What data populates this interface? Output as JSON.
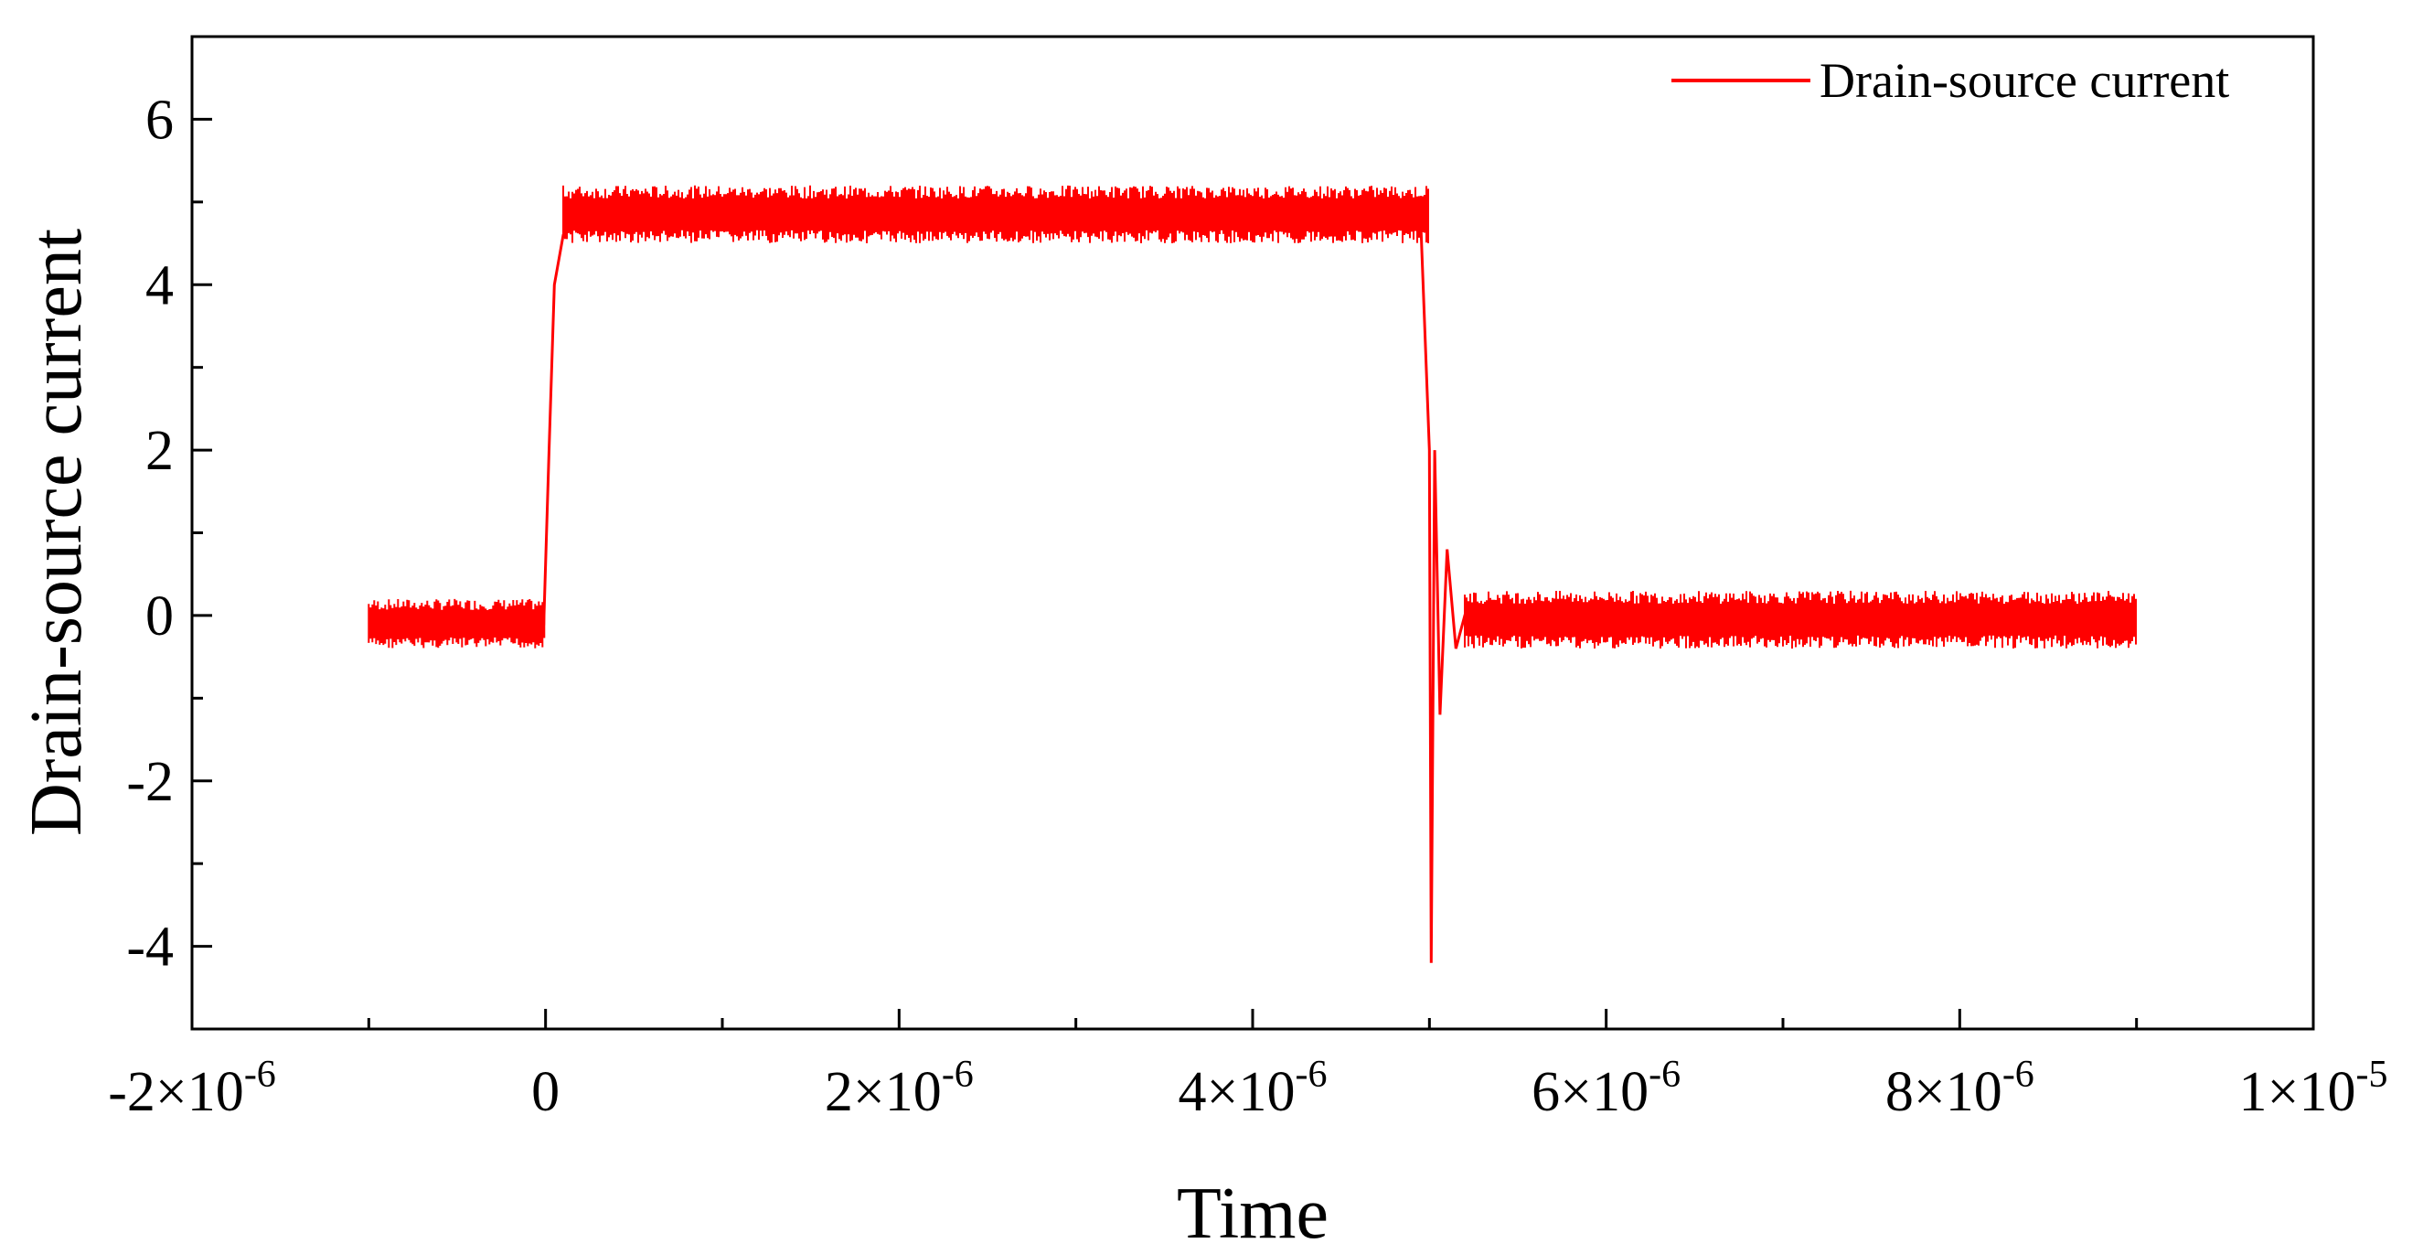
{
  "chart_data": {
    "type": "line",
    "title": "",
    "xlabel": "Time",
    "ylabel": "Drain-source current",
    "xlim": [
      -2e-06,
      1e-05
    ],
    "ylim": [
      -5,
      7
    ],
    "x_ticks": [
      {
        "value": -2e-06,
        "mant": "-2",
        "exp": "-6"
      },
      {
        "value": 0,
        "mant": "0",
        "exp": ""
      },
      {
        "value": 2e-06,
        "mant": "2",
        "exp": "-6"
      },
      {
        "value": 4e-06,
        "mant": "4",
        "exp": "-6"
      },
      {
        "value": 6e-06,
        "mant": "6",
        "exp": "-6"
      },
      {
        "value": 8e-06,
        "mant": "8",
        "exp": "-6"
      },
      {
        "value": 1e-05,
        "mant": "1",
        "exp": "-5"
      }
    ],
    "x_minor_ticks": [
      -1e-06,
      1e-06,
      3e-06,
      5e-06,
      7e-06,
      9e-06
    ],
    "y_ticks": [
      {
        "value": -4,
        "label": "-4"
      },
      {
        "value": -2,
        "label": "-2"
      },
      {
        "value": 0,
        "label": "0"
      },
      {
        "value": 2,
        "label": "2"
      },
      {
        "value": 4,
        "label": "4"
      },
      {
        "value": 6,
        "label": "6"
      }
    ],
    "y_minor_ticks": [
      -5,
      -3,
      -1,
      1,
      3,
      5,
      7
    ],
    "grid": false,
    "legend_position": "top-right",
    "series": [
      {
        "name": "Drain-source current",
        "color": "#ff0000",
        "x": [
          -1e-06,
          -5e-07,
          -1e-08,
          2e-08,
          5e-08,
          1e-07,
          2e-07,
          1e-06,
          2e-06,
          3e-06,
          4e-06,
          4.95e-06,
          5e-06,
          5.01e-06,
          5.03e-06,
          5.06e-06,
          5.1e-06,
          5.15e-06,
          5.2e-06,
          6e-06,
          7e-06,
          8e-06,
          9e-06
        ],
        "y": [
          -0.1,
          -0.1,
          -0.1,
          2.0,
          4.0,
          4.6,
          4.75,
          4.8,
          4.8,
          4.8,
          4.8,
          4.8,
          2.0,
          -4.2,
          2.0,
          -1.2,
          0.8,
          -0.4,
          0.0,
          0.0,
          -0.05,
          0.0,
          -0.05
        ],
        "noise_band": [
          {
            "x_range": [
              -1e-06,
              0
            ],
            "y_range": [
              -0.4,
              0.2
            ]
          },
          {
            "x_range": [
              1e-07,
              5e-06
            ],
            "y_range": [
              4.5,
              5.2
            ]
          },
          {
            "x_range": [
              5.2e-06,
              9e-06
            ],
            "y_range": [
              -0.4,
              0.3
            ]
          }
        ]
      }
    ]
  }
}
